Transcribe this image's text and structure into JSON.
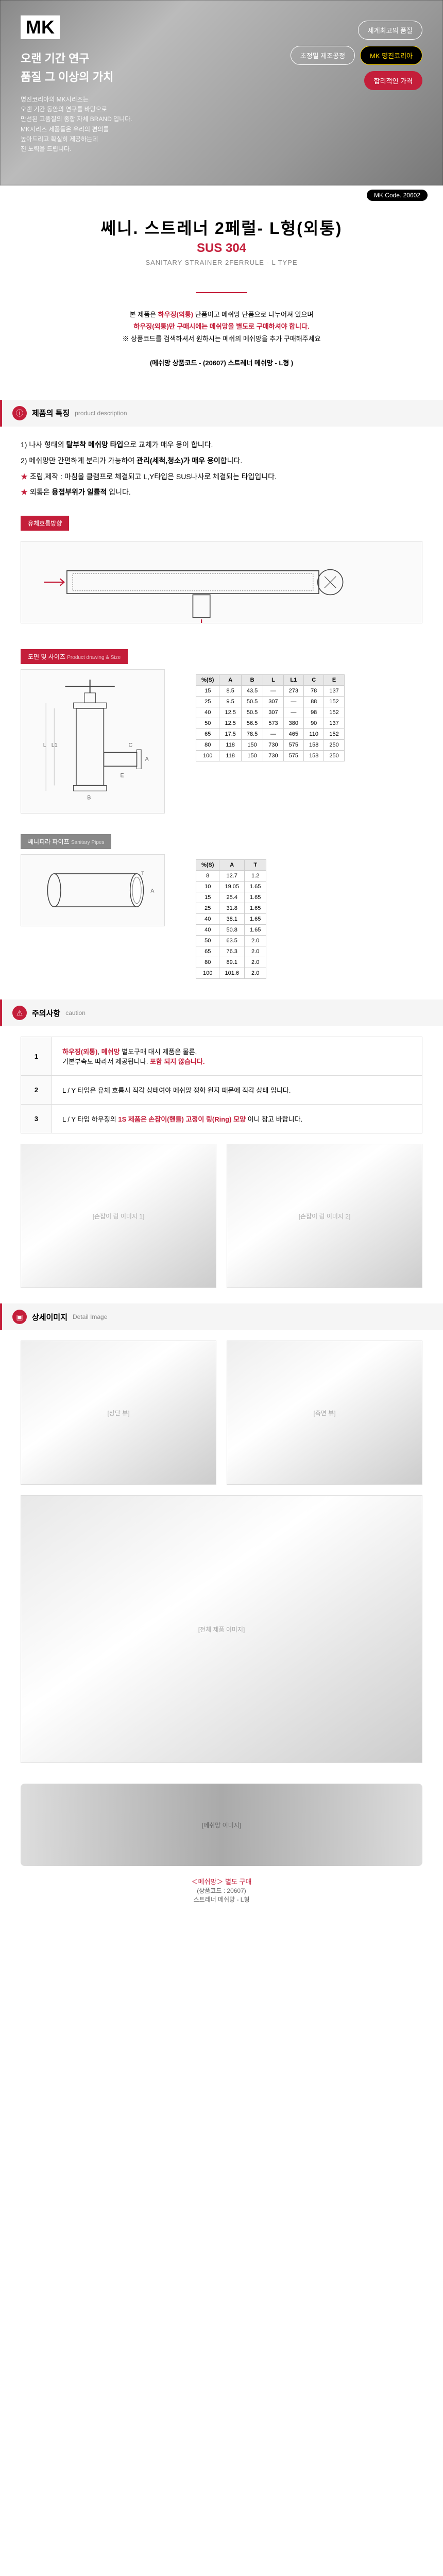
{
  "hero": {
    "brand": "MK",
    "tagline1": "오랜 기간 연구",
    "tagline2": "품질 그 이상의 가치",
    "desc_lines": [
      "명진코리아의 MK시리즈는",
      "오랜 기간 동안의 연구를 바탕으로",
      "만선된 고품질의 종합 자체 BRAND 입니다.",
      "MK시리즈 제품들은 우리의 편의를",
      "높아드리고 확실히 제공하는데",
      "진 노력을 드립니다."
    ],
    "badges": [
      {
        "text": "세계최고의 품질",
        "style": "outline"
      },
      {
        "text": "초정밀 제조공정",
        "style": "outline"
      },
      {
        "text": "MK 명진코리아",
        "style": "yellow"
      },
      {
        "text": "합리적인 가격",
        "style": "red"
      }
    ]
  },
  "code": "MK Code. 20602",
  "title": {
    "main": "쎄니. 스트레너 2페럴- L형(외통)",
    "sub": "SUS 304",
    "en": "SANITARY STRAINER 2FERRULE - L TYPE"
  },
  "notice": {
    "lines": [
      "본 제품은 <하우징(외통)> 단품이고 메쉬망 단품으로 나누어져 있으며",
      "<하우징(외통)>만 구매시에는 <메쉬망>을 별도로 구매하셔야 합니다.",
      "※ 상품코드를 검색하셔서 원하시는 메쉬의 메쉬망을 추가 구매해주세요"
    ],
    "codeinfo": "(메쉬망 상품코드 - (20607) 스트레너 메쉬망 - L형 )"
  },
  "features": {
    "head_kr": "제품의 특징",
    "head_en": "product description",
    "items": [
      "1) 나사 형태의 <탈부착 메쉬망 타입>으로 교체가 매우 용이 합니다.",
      "2) 메쉬망만 간편하게 분리가 가능하여 <관리(세척,청소)가 매우 용이>합니다.",
      "★ 조립,제작 : 마침을 클램프로 체결되고 L,Y타입은 SUS나사로 체결되는 타입입니다.",
      "★ 외통은 <용접부위가 일률적> 입니다."
    ]
  },
  "flow_label": "유체흐름방향",
  "drawing_label": "도면 및 사이즈",
  "drawing_label_en": "Product drawing & Size",
  "main_spec": {
    "columns": [
      "%(S)",
      "A",
      "B",
      "L",
      "L1",
      "C",
      "E"
    ],
    "rows": [
      [
        "15",
        "8.5",
        "43.5",
        "—",
        "273",
        "78",
        "137"
      ],
      [
        "25",
        "9.5",
        "50.5",
        "307",
        "—",
        "88",
        "152"
      ],
      [
        "40",
        "12.5",
        "50.5",
        "307",
        "—",
        "98",
        "152"
      ],
      [
        "50",
        "12.5",
        "56.5",
        "573",
        "380",
        "90",
        "137"
      ],
      [
        "65",
        "17.5",
        "78.5",
        "—",
        "465",
        "110",
        "152"
      ],
      [
        "80",
        "118",
        "150",
        "730",
        "575",
        "158",
        "250"
      ],
      [
        "100",
        "118",
        "150",
        "730",
        "575",
        "158",
        "250"
      ]
    ]
  },
  "sanitary_label": "쎄니피라 파이프",
  "sanitary_label_en": "Sanitary Pipes",
  "pipe_spec": {
    "columns": [
      "%(S)",
      "A",
      "T"
    ],
    "rows": [
      [
        "8",
        "12.7",
        "1.2"
      ],
      [
        "10",
        "19.05",
        "1.65"
      ],
      [
        "15",
        "25.4",
        "1.65"
      ],
      [
        "25",
        "31.8",
        "1.65"
      ],
      [
        "40",
        "38.1",
        "1.65"
      ],
      [
        "40",
        "50.8",
        "1.65"
      ],
      [
        "50",
        "63.5",
        "2.0"
      ],
      [
        "65",
        "76.3",
        "2.0"
      ],
      [
        "80",
        "89.1",
        "2.0"
      ],
      [
        "100",
        "101.6",
        "2.0"
      ]
    ]
  },
  "caution": {
    "head": "주의사항",
    "head_en": "caution",
    "items": [
      {
        "n": "1",
        "text": "<하우징(외통)>, <메쉬망> 별도구매 대시 제품은 물론, 기본부속도 따라서 제공됩니다. <포함 되지 않습니다.>",
        "highlight": [
          "하우징(외통)",
          "메쉬망",
          "포함 되지 않습니다."
        ]
      },
      {
        "n": "2",
        "text": "L / Y 타입은 유체 흐름시 직각 상태여야 메쉬망 정화 원지 때문에 직각 상태 입니다."
      },
      {
        "n": "3",
        "text": "L / Y 타입 하우징의 <1S 제품은 손잡이(핸들) 고정이 링(Ring) 모양> 이니 참고 바랍니다.",
        "highlight": [
          "1S 제품은 손잡이(핸들) 고정이 링(Ring) 모양"
        ]
      }
    ]
  },
  "detail_label": "상세이미지",
  "detail_label_en": "Detail Image",
  "mesh_note": {
    "main": "＜메쉬망＞ 별도 구매",
    "sub1": "(상품코드 : 20607)",
    "sub2": "스트레너 메쉬망 - L형"
  },
  "colors": {
    "accent": "#c41e3a",
    "yellow": "#ffd700",
    "bg_gray": "#f5f5f5",
    "border": "#ddd"
  }
}
